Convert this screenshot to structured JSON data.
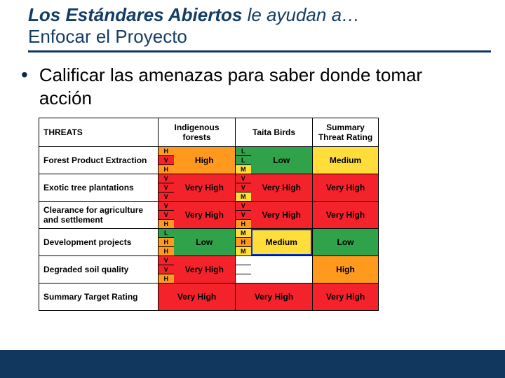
{
  "colors": {
    "navy": "#12375f",
    "titleText": "#143d66",
    "low": "#2fa24a",
    "medium": "#ffde3b",
    "high": "#ff9a1f",
    "veryHigh": "#f4232b"
  },
  "title": {
    "strong": "Los Estándares Abiertos",
    "rest": " le ayudan a…",
    "line2": "Enfocar el Proyecto"
  },
  "bullet": "Calificar las amenazas para saber donde tomar acción",
  "table": {
    "headers": {
      "threats": "THREATS",
      "col1": "Indigenous forests",
      "col2": "Taita Birds",
      "summary": "Summary Threat Rating"
    },
    "ratingLabels": {
      "L": "L",
      "M": "M",
      "H": "H",
      "V": "V"
    },
    "rows": [
      {
        "label": "Forest Product Extraction",
        "c1": {
          "mini": [
            "H",
            "V",
            "H"
          ],
          "rating": "High",
          "level": "high"
        },
        "c2": {
          "mini": [
            "L",
            "L",
            "M"
          ],
          "rating": "Low",
          "level": "low"
        },
        "sum": {
          "rating": "Medium",
          "level": "medium"
        }
      },
      {
        "label": "Exotic tree plantations",
        "c1": {
          "mini": [
            "V",
            "V",
            "V"
          ],
          "rating": "Very High",
          "level": "veryHigh"
        },
        "c2": {
          "mini": [
            "V",
            "V",
            "M"
          ],
          "rating": "Very High",
          "level": "veryHigh"
        },
        "sum": {
          "rating": "Very High",
          "level": "veryHigh"
        }
      },
      {
        "label": "Clearance for agriculture and settlement",
        "c1": {
          "mini": [
            "V",
            "V",
            "H"
          ],
          "rating": "Very High",
          "level": "veryHigh"
        },
        "c2": {
          "mini": [
            "V",
            "V",
            "H"
          ],
          "rating": "Very High",
          "level": "veryHigh"
        },
        "sum": {
          "rating": "Very High",
          "level": "veryHigh"
        }
      },
      {
        "label": "Development projects",
        "c1": {
          "mini": [
            "L",
            "H",
            "H"
          ],
          "rating": "Low",
          "level": "low"
        },
        "c2": {
          "mini": [
            "M",
            "H",
            "M"
          ],
          "rating": "Medium",
          "level": "medium",
          "outline": true
        },
        "sum": {
          "rating": "Low",
          "level": "low"
        }
      },
      {
        "label": "Degraded soil quality",
        "c1": {
          "mini": [
            "V",
            "V",
            "H"
          ],
          "rating": "Very High",
          "level": "veryHigh"
        },
        "c2": {
          "mini": [
            "",
            "",
            ""
          ],
          "rating": "",
          "level": "blank"
        },
        "sum": {
          "rating": "High",
          "level": "high"
        }
      }
    ],
    "summaryRow": {
      "label": "Summary Target Rating",
      "c1": {
        "rating": "Very High",
        "level": "veryHigh"
      },
      "c2": {
        "rating": "Very High",
        "level": "veryHigh"
      },
      "sum": {
        "rating": "Very High",
        "level": "veryHigh"
      }
    }
  }
}
